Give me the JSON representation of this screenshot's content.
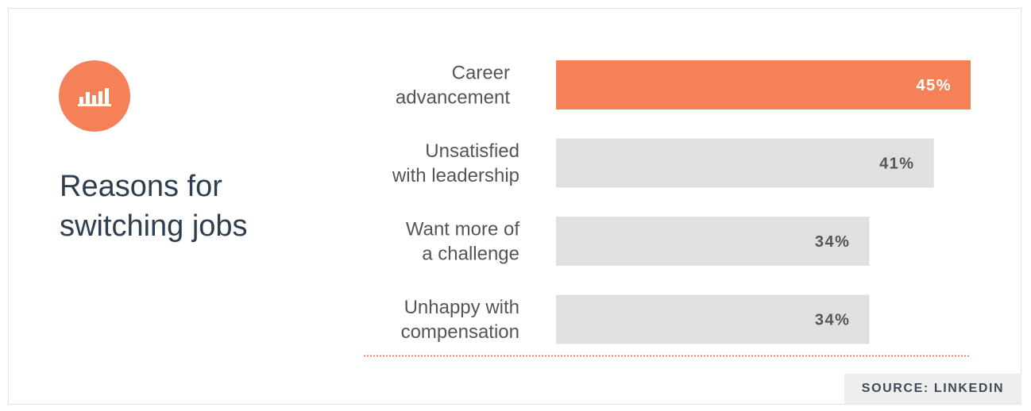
{
  "colors": {
    "accent": "#f58159",
    "bar_default": "#e0e0e0",
    "title_text": "#2d3e50",
    "label_text": "#555555",
    "value_on_accent": "#ffffff",
    "value_on_default": "#555555",
    "baseline": "#e8643f",
    "source_bg": "#eeeeee"
  },
  "icon": {
    "name": "bar-chart-icon"
  },
  "title": "Reasons for\nswitching jobs",
  "source": "SOURCE: LINKEDIN",
  "chart_data": {
    "type": "bar",
    "orientation": "horizontal",
    "title": "Reasons for switching jobs",
    "xlabel": "",
    "ylabel": "",
    "categories": [
      [
        "Career",
        "advancement"
      ],
      [
        "Unsatisfied",
        "with leadership"
      ],
      [
        "Want more of",
        "a challenge"
      ],
      [
        "Unhappy with",
        "compensation"
      ]
    ],
    "values": [
      45,
      41,
      34,
      34
    ],
    "value_labels": [
      "45%",
      "41%",
      "34%",
      "34%"
    ],
    "highlight_index": 0,
    "xlim": [
      0,
      45
    ],
    "grid": false,
    "legend": "none"
  }
}
